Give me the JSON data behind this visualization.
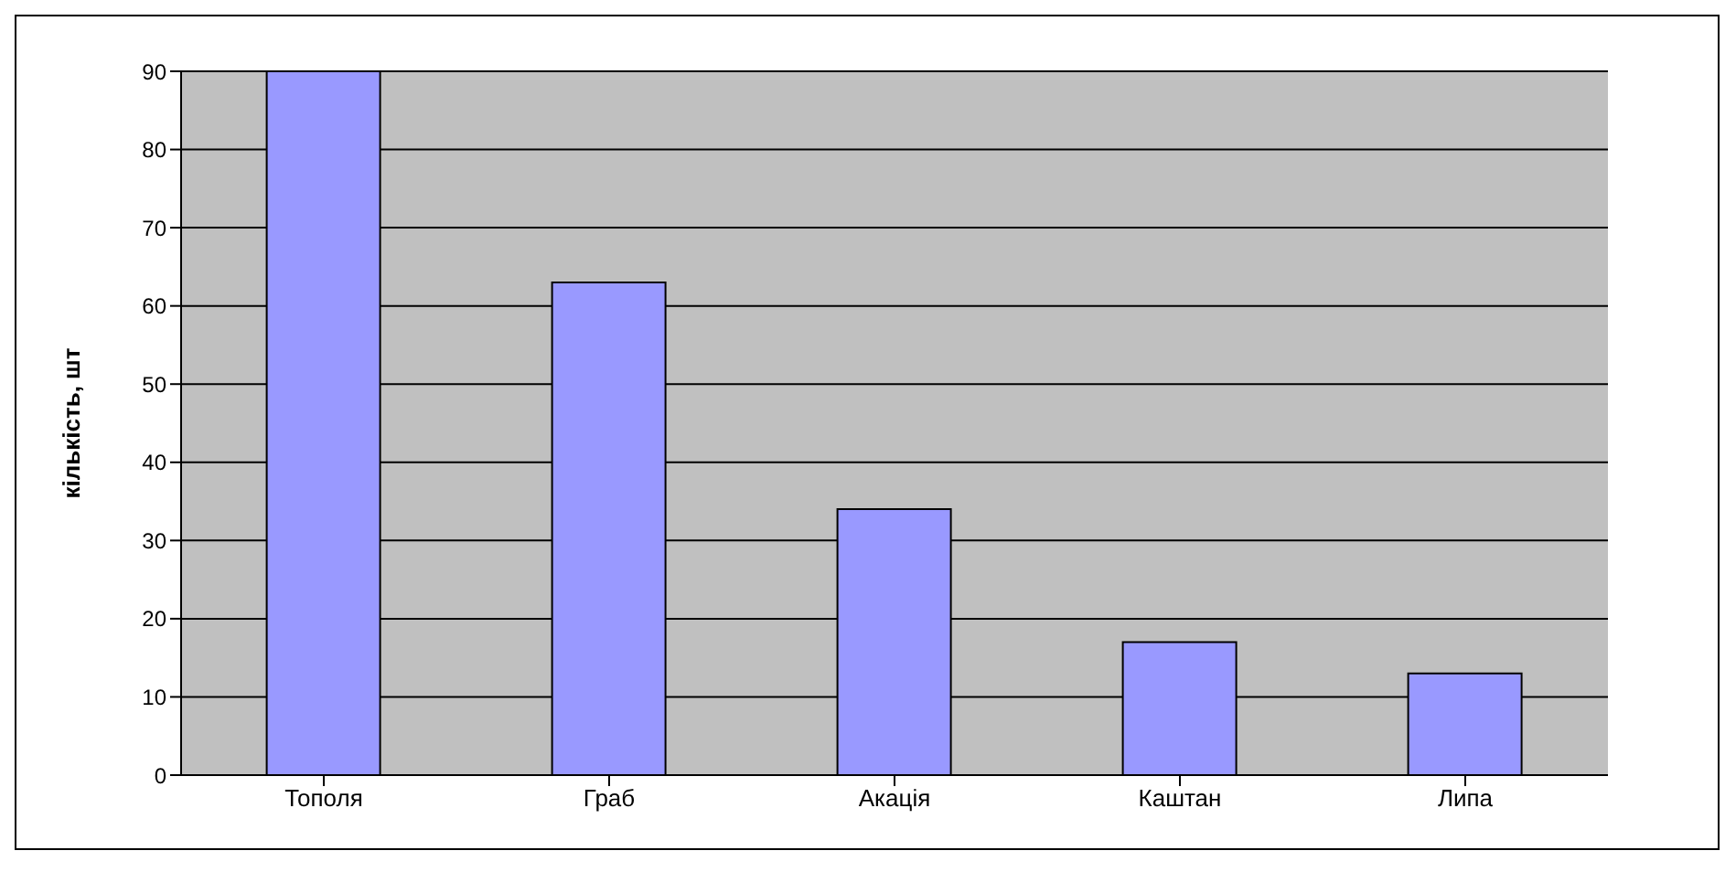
{
  "chart_data": {
    "type": "bar",
    "ylabel": "кількість, шт",
    "categories": [
      "Тополя",
      "Граб",
      "Акація",
      "Каштан",
      "Липа"
    ],
    "values": [
      90,
      63,
      34,
      17,
      13
    ],
    "color": "#9999ff",
    "ylim": [
      0,
      90
    ],
    "yticks": [
      0,
      10,
      20,
      30,
      40,
      50,
      60,
      70,
      80,
      90
    ],
    "grid": "y"
  }
}
